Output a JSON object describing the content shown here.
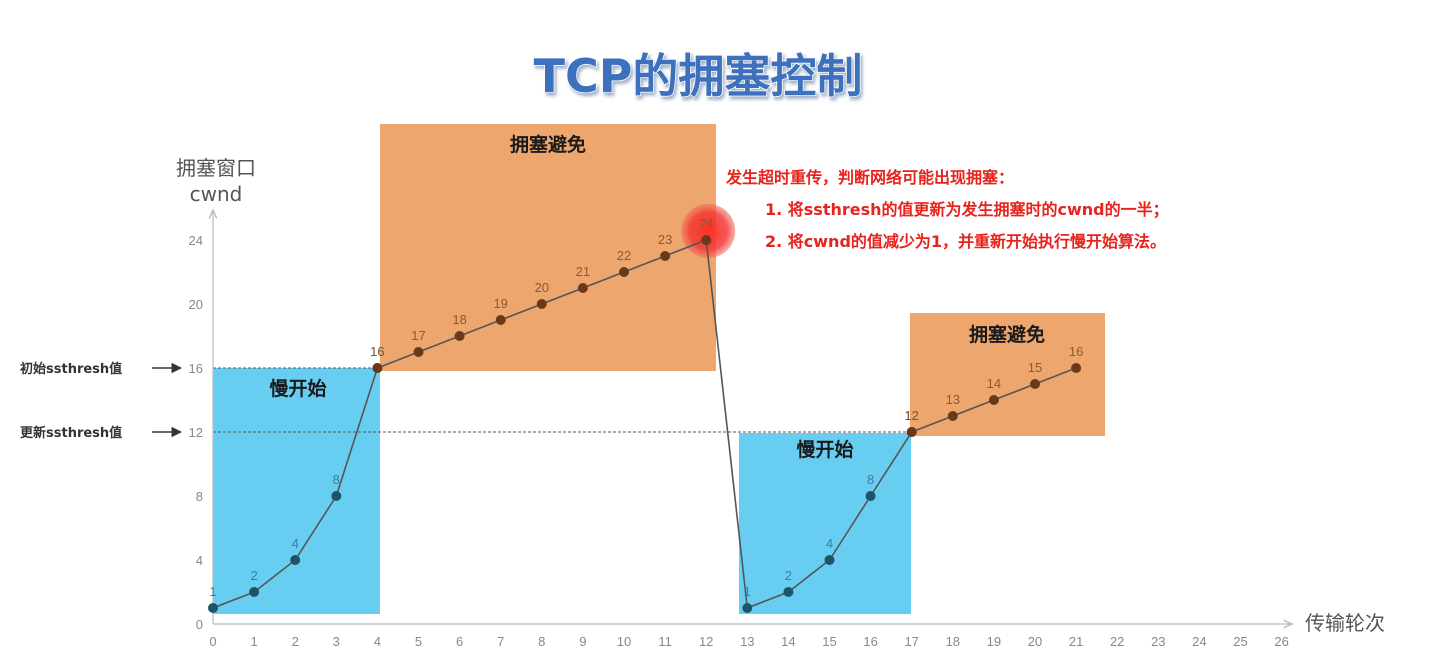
{
  "title": "TCP的拥塞控制",
  "axes": {
    "y_title_line1": "拥塞窗口",
    "y_title_line2": "cwnd",
    "x_title": "传输轮次"
  },
  "phases": {
    "slow_start_1": "慢开始",
    "congestion_avoidance_1": "拥塞避免",
    "slow_start_2": "慢开始",
    "congestion_avoidance_2": "拥塞避免"
  },
  "side_labels": {
    "initial_ssthresh": "初始ssthresh值",
    "updated_ssthresh": "更新ssthresh值"
  },
  "note": {
    "line1": "发生超时重传，判断网络可能出现拥塞：",
    "line2": "1. 将ssthresh的值更新为发生拥塞时的cwnd的一半；",
    "line3": "2. 将cwnd的值减少为1，并重新开始执行慢开始算法。"
  },
  "colors": {
    "slow_start": "#67cef2",
    "congestion_avoidance": "#eda66e",
    "line": "#555555",
    "dot_slow_start": "#1f5368",
    "dot_avoidance": "#6a3a18",
    "timeout_marker": "#f03a36",
    "title_fill": "#3e6fbd"
  },
  "chart_data": {
    "type": "line",
    "xlabel": "传输轮次",
    "ylabel": "拥塞窗口 cwnd",
    "xlim": [
      0,
      26
    ],
    "ylim": [
      0,
      24
    ],
    "xticks": [
      0,
      1,
      2,
      3,
      4,
      5,
      6,
      7,
      8,
      9,
      10,
      11,
      12,
      13,
      14,
      15,
      16,
      17,
      18,
      19,
      20,
      21,
      22,
      23,
      24,
      25,
      26
    ],
    "yticks": [
      0,
      4,
      8,
      12,
      16,
      20,
      24
    ],
    "ssthresh_initial": 16,
    "ssthresh_updated": 12,
    "timeout_round": 12,
    "segments": [
      {
        "phase": "slow_start",
        "x": [
          0,
          1,
          2,
          3,
          4
        ],
        "y": [
          1,
          2,
          4,
          8,
          16
        ],
        "labels": [
          "1",
          "2",
          "4",
          "8",
          "16"
        ]
      },
      {
        "phase": "congestion_avoidance",
        "x": [
          4,
          5,
          6,
          7,
          8,
          9,
          10,
          11,
          12
        ],
        "y": [
          16,
          17,
          18,
          19,
          20,
          21,
          22,
          23,
          24
        ],
        "labels": [
          "16",
          "17",
          "18",
          "19",
          "20",
          "21",
          "22",
          "23",
          "24"
        ]
      },
      {
        "phase": "slow_start",
        "x": [
          13,
          14,
          15,
          16,
          17
        ],
        "y": [
          1,
          2,
          4,
          8,
          12
        ],
        "labels": [
          "1",
          "2",
          "4",
          "8",
          "12"
        ]
      },
      {
        "phase": "congestion_avoidance",
        "x": [
          17,
          18,
          19,
          20,
          21
        ],
        "y": [
          12,
          13,
          14,
          15,
          16
        ],
        "labels": [
          "12",
          "13",
          "14",
          "15",
          "16"
        ]
      }
    ]
  }
}
